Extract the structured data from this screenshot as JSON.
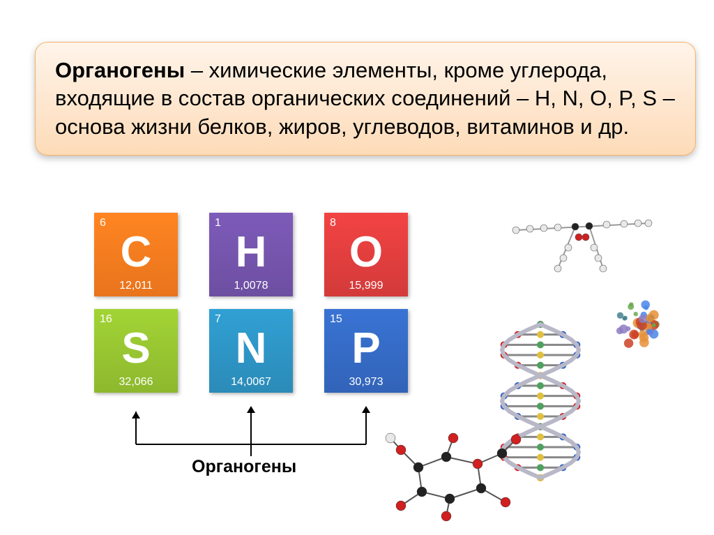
{
  "definition": {
    "bold": "Органогены",
    "text": " – химические элементы, кроме углерода, входящие в состав органических соединений – H, N, O, P, S – основа жизни белков, жиров, углеводов, витаминов и др.",
    "box_gradient_top": "#fff4ea",
    "box_gradient_bottom": "#fddbb8",
    "border_color": "#f5b26b"
  },
  "elements": [
    {
      "symbol": "C",
      "atomic_num": "6",
      "mass": "12,011",
      "color": "#e8741d"
    },
    {
      "symbol": "H",
      "atomic_num": "1",
      "mass": "1,0078",
      "color": "#6d4fa1"
    },
    {
      "symbol": "O",
      "atomic_num": "8",
      "mass": "15,999",
      "color": "#d33a3a"
    },
    {
      "symbol": "S",
      "atomic_num": "16",
      "mass": "32,066",
      "color": "#8db82e"
    },
    {
      "symbol": "N",
      "atomic_num": "7",
      "mass": "14,0067",
      "color": "#2b8bb8"
    },
    {
      "symbol": "P",
      "atomic_num": "15",
      "mass": "30,973",
      "color": "#3264b8"
    }
  ],
  "bracket_label": "Органогены",
  "bracket": {
    "stroke": "#000000",
    "stroke_width": 2
  },
  "molecules": {
    "atom_colors": {
      "carbon": "#222222",
      "oxygen": "#d02020",
      "hydrogen": "#e8e8e8",
      "nitrogen": "#3060c0",
      "phosphorus": "#e08030"
    }
  }
}
